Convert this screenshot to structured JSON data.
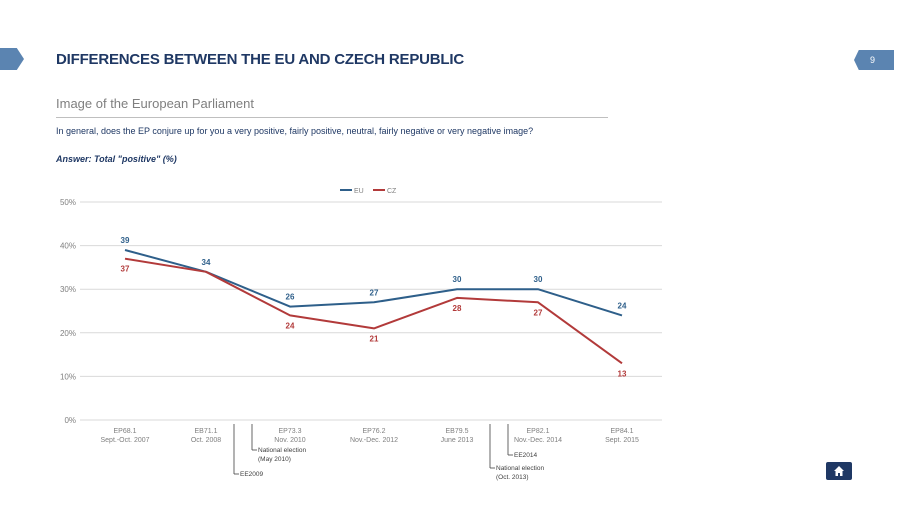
{
  "header": {
    "title": "DIFFERENCES BETWEEN THE EU AND CZECH REPUBLIC",
    "page_number": "9"
  },
  "section": {
    "subtitle": "Image of the European Parliament",
    "question": "In general, does the EP conjure up for you a very positive, fairly positive, neutral, fairly negative or very negative image?",
    "answer": "Answer: Total \"positive\" (%)"
  },
  "colors": {
    "eu": "#2e5f8a",
    "cz": "#b23a3a",
    "grid": "#d9d9d9",
    "axis_text": "#7f7f7f",
    "brand": "#1f3864"
  },
  "nav": {
    "home_icon": "home-icon"
  },
  "chart_data": {
    "type": "line",
    "categories": [
      [
        "EP68.1",
        "Sept.-Oct. 2007"
      ],
      [
        "EB71.1",
        "Oct. 2008"
      ],
      [
        "EP73.3",
        "Nov. 2010"
      ],
      [
        "EP76.2",
        "Nov.-Dec. 2012"
      ],
      [
        "EB79.5",
        "June 2013"
      ],
      [
        "EP82.1",
        "Nov.-Dec. 2014"
      ],
      [
        "EP84.1",
        "Sept. 2015"
      ]
    ],
    "series": [
      {
        "name": "EU",
        "values": [
          39,
          34,
          26,
          27,
          30,
          30,
          24
        ]
      },
      {
        "name": "CZ",
        "values": [
          37,
          34,
          24,
          21,
          28,
          27,
          13
        ]
      }
    ],
    "y_ticks": [
      "0%",
      "10%",
      "20%",
      "30%",
      "40%",
      "50%"
    ],
    "ylim": [
      0,
      50
    ],
    "legend_position": "top-center",
    "grid": true,
    "annotations": [
      {
        "text": [
          "EE2009"
        ],
        "after_category": 1
      },
      {
        "text": [
          "National election",
          "(May 2010)"
        ],
        "after_category": 1
      },
      {
        "text": [
          "National election",
          "(Oct. 2013)"
        ],
        "after_category": 4
      },
      {
        "text": [
          "EE2014"
        ],
        "after_category": 4
      }
    ]
  }
}
